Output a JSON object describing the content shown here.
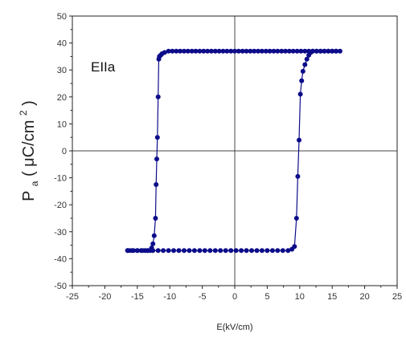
{
  "chart_data": {
    "type": "scatter",
    "title": "",
    "annotation": "EIIa",
    "xlabel": "E(kV/cm)",
    "ylabel": {
      "main": "P",
      "sub": "a",
      "paren_open": "(",
      "unit_base": "μC/cm",
      "unit_sup": "2",
      "paren_close": ")"
    },
    "xlim": [
      -25,
      25
    ],
    "ylim": [
      -50,
      50
    ],
    "xticks": [
      -25,
      -20,
      -15,
      -10,
      -5,
      0,
      5,
      10,
      15,
      20,
      25
    ],
    "yticks": [
      -50,
      -40,
      -30,
      -20,
      -10,
      0,
      10,
      20,
      30,
      40,
      50
    ],
    "xtick_labels": [
      "-25",
      "-20",
      "-15",
      "-10",
      "-5",
      "0",
      "5",
      "10",
      "15",
      "20",
      "25"
    ],
    "ytick_labels": [
      "-50",
      "-40",
      "-30",
      "-20",
      "-10",
      "0",
      "10",
      "20",
      "30",
      "40",
      "50"
    ],
    "grid": false,
    "zero_lines": true,
    "colors": {
      "series": "#0c0c8a",
      "axis": "#222222",
      "zero_line": "#444444"
    },
    "series": [
      {
        "x": [
          -16.5,
          -15.8,
          -15.0,
          -14.2,
          -13.4,
          -12.6,
          -11.8,
          -11.0,
          -10.2,
          -9.4,
          -8.6,
          -7.8,
          -7.0,
          -6.2,
          -5.4,
          -4.6,
          -3.8,
          -3.0,
          -2.2,
          -1.4,
          -0.6,
          0.2,
          1.0,
          1.8,
          2.6,
          3.4,
          4.2,
          5.0,
          5.8,
          6.6,
          7.4,
          8.2,
          8.8,
          9.2,
          9.5,
          9.7,
          9.9,
          10.1,
          10.3,
          10.5,
          10.8,
          11.1,
          11.4,
          11.7,
          12.0,
          12.6,
          13.2,
          13.8,
          14.4,
          15.0,
          15.6,
          16.2,
          15.6,
          15.0,
          14.4,
          13.8,
          13.2,
          12.6,
          12.0,
          11.4,
          10.8,
          10.2,
          9.6,
          9.0,
          8.4,
          7.8,
          7.2,
          6.6,
          6.0,
          5.4,
          4.8,
          4.2,
          3.6,
          3.0,
          2.4,
          1.8,
          1.2,
          0.6,
          0.0,
          -0.6,
          -1.2,
          -1.8,
          -2.4,
          -3.0,
          -3.6,
          -4.2,
          -4.8,
          -5.4,
          -6.0,
          -6.6,
          -7.2,
          -7.8,
          -8.4,
          -9.0,
          -9.6,
          -10.2,
          -10.8,
          -11.2,
          -11.4,
          -11.6,
          -11.7,
          -11.8,
          -11.9,
          -12.0,
          -12.1,
          -12.2,
          -12.4,
          -12.6,
          -12.8,
          -13.0,
          -13.4,
          -13.8,
          -14.4,
          -15.0,
          -15.6,
          -16.2,
          -16.5
        ],
        "y": [
          -37,
          -37,
          -37,
          -37,
          -37,
          -37,
          -37,
          -37,
          -37,
          -37,
          -37,
          -37,
          -37,
          -37,
          -37,
          -37,
          -37,
          -37,
          -37,
          -37,
          -37,
          -37,
          -37,
          -37,
          -37,
          -37,
          -37,
          -37,
          -37,
          -37,
          -37,
          -37,
          -36.5,
          -35.5,
          -25,
          -9.5,
          4,
          21,
          26,
          29.5,
          32,
          34,
          35.5,
          36.5,
          37,
          37,
          37,
          37,
          37,
          37,
          37,
          37,
          37,
          37,
          37,
          37,
          37,
          37,
          37,
          37,
          37,
          37,
          37,
          37,
          37,
          37,
          37,
          37,
          37,
          37,
          37,
          37,
          37,
          37,
          37,
          37,
          37,
          37,
          37,
          37,
          37,
          37,
          37,
          37,
          37,
          37,
          37,
          37,
          37,
          37,
          37,
          37,
          37,
          37,
          37,
          37,
          36.5,
          36,
          35.5,
          35,
          34,
          20,
          5,
          -3,
          -12.5,
          -25,
          -31.5,
          -34.5,
          -36,
          -37,
          -37,
          -37,
          -37,
          -37,
          -37,
          -37,
          -37
        ]
      }
    ]
  }
}
